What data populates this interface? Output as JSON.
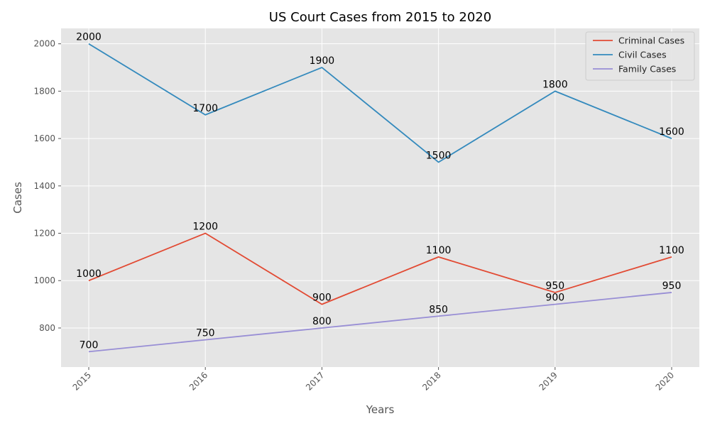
{
  "chart_data": {
    "type": "line",
    "title": "US Court Cases from 2015 to 2020",
    "xlabel": "Years",
    "ylabel": "Cases",
    "x": [
      "2015",
      "2016",
      "2017",
      "2018",
      "2019",
      "2020"
    ],
    "ylim": [
      635,
      2065
    ],
    "yticks": [
      800,
      1000,
      1200,
      1400,
      1600,
      1800,
      2000
    ],
    "grid": true,
    "legend_position": "top-right",
    "background_color": "#e5e5e5",
    "series": [
      {
        "name": "Criminal Cases",
        "color": "#e24a33",
        "values": [
          1000,
          1200,
          900,
          1100,
          950,
          1100
        ]
      },
      {
        "name": "Civil Cases",
        "color": "#348abd",
        "values": [
          2000,
          1700,
          1900,
          1500,
          1800,
          1600
        ]
      },
      {
        "name": "Family Cases",
        "color": "#988ed5",
        "values": [
          700,
          750,
          800,
          850,
          900,
          950
        ]
      }
    ]
  }
}
